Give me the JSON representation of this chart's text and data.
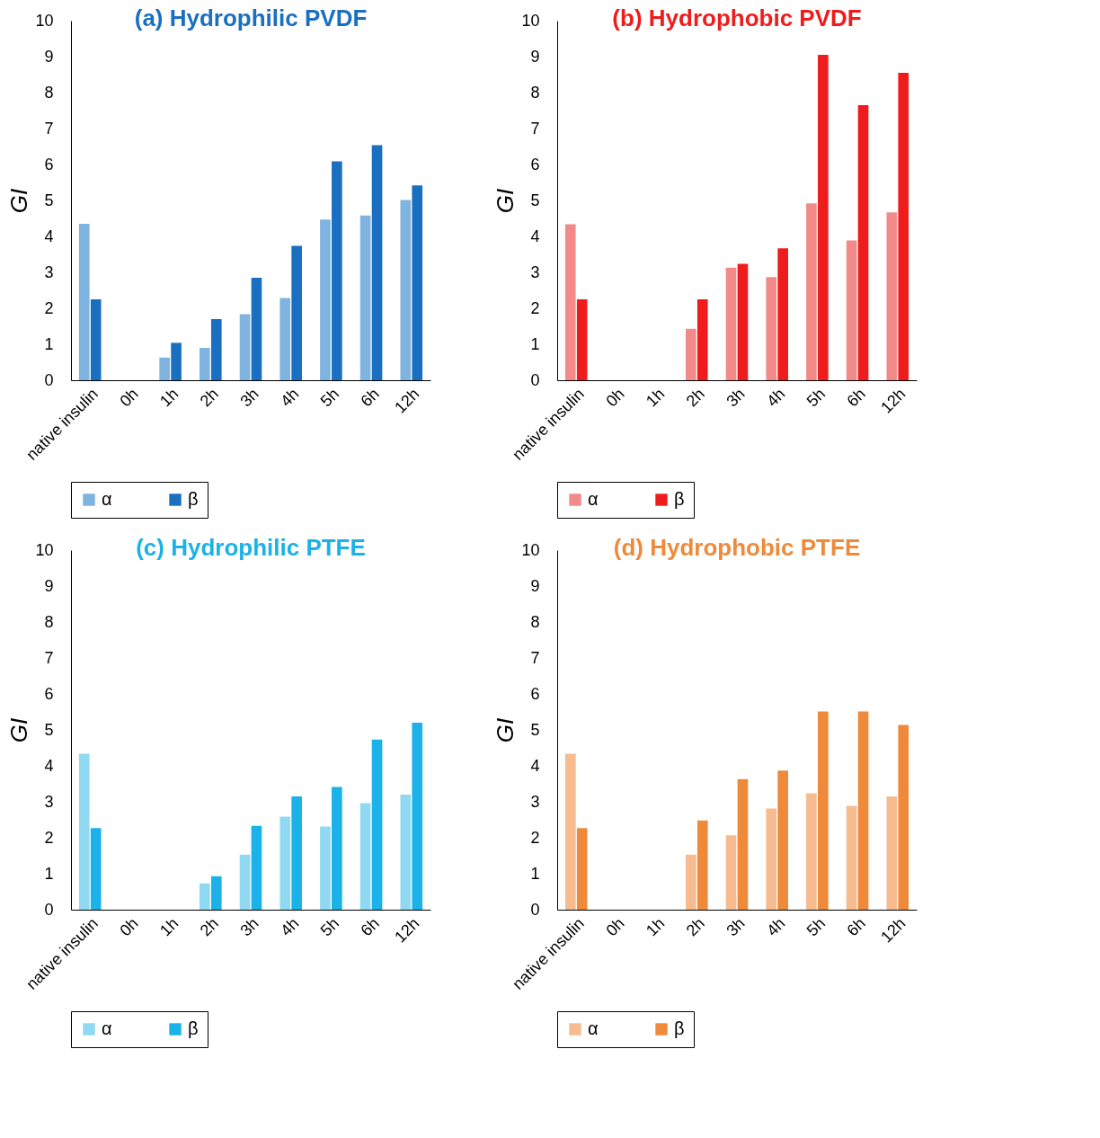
{
  "chart_data": [
    {
      "type": "bar",
      "title": "(a) Hydrophilic PVDF",
      "ylabel": "GI",
      "categories": [
        "native insulin",
        "0h",
        "1h",
        "2h",
        "3h",
        "4h",
        "5h",
        "6h",
        "12h"
      ],
      "series": [
        {
          "name": "α",
          "color": "#7fb3e0",
          "values": [
            4.35,
            0,
            0.63,
            0.9,
            1.84,
            2.29,
            4.47,
            4.58,
            5.01
          ]
        },
        {
          "name": "β",
          "color": "#1a6fc0",
          "values": [
            2.25,
            0,
            1.04,
            1.7,
            2.85,
            3.74,
            6.09,
            6.54,
            5.42
          ]
        }
      ],
      "ylim": [
        0,
        10
      ],
      "yticks": [
        0,
        1,
        2,
        3,
        4,
        5,
        6,
        7,
        8,
        9,
        10
      ],
      "grid": false,
      "legend": "bottom"
    },
    {
      "type": "bar",
      "title": "(b) Hydrophobic PVDF",
      "ylabel": "GI",
      "categories": [
        "native insulin",
        "0h",
        "1h",
        "2h",
        "3h",
        "4h",
        "5h",
        "6h",
        "12h"
      ],
      "series": [
        {
          "name": "α",
          "color": "#f28a8a",
          "values": [
            4.34,
            0,
            0,
            1.43,
            3.13,
            2.87,
            4.92,
            3.89,
            4.67
          ]
        },
        {
          "name": "β",
          "color": "#ee1c1c",
          "values": [
            2.25,
            0,
            0,
            2.25,
            3.24,
            3.67,
            9.05,
            7.65,
            8.55
          ]
        }
      ],
      "ylim": [
        0,
        10
      ],
      "yticks": [
        0,
        1,
        2,
        3,
        4,
        5,
        6,
        7,
        8,
        9,
        10
      ],
      "grid": false,
      "legend": "bottom"
    },
    {
      "type": "bar",
      "title": "(c) Hydrophilic PTFE",
      "ylabel": "GI",
      "categories": [
        "native insulin",
        "0h",
        "1h",
        "2h",
        "3h",
        "4h",
        "5h",
        "6h",
        "12h"
      ],
      "series": [
        {
          "name": "α",
          "color": "#8fd9f2",
          "values": [
            4.34,
            0,
            0,
            0.73,
            1.53,
            2.59,
            2.31,
            2.96,
            3.2
          ]
        },
        {
          "name": "β",
          "color": "#1ab2e8",
          "values": [
            2.27,
            0,
            0,
            0.93,
            2.33,
            3.15,
            3.41,
            4.73,
            5.2
          ]
        }
      ],
      "ylim": [
        0,
        10
      ],
      "yticks": [
        0,
        1,
        2,
        3,
        4,
        5,
        6,
        7,
        8,
        9,
        10
      ],
      "grid": false,
      "legend": "bottom"
    },
    {
      "type": "bar",
      "title": "(d) Hydrophobic PTFE",
      "ylabel": "GI",
      "categories": [
        "native insulin",
        "0h",
        "1h",
        "2h",
        "3h",
        "4h",
        "5h",
        "6h",
        "12h"
      ],
      "series": [
        {
          "name": "α",
          "color": "#f6bb8e",
          "values": [
            4.34,
            0,
            0,
            1.53,
            2.07,
            2.81,
            3.24,
            2.89,
            3.15
          ]
        },
        {
          "name": "β",
          "color": "#ee8a3a",
          "values": [
            2.27,
            0,
            0,
            2.48,
            3.63,
            3.87,
            5.51,
            5.51,
            5.14
          ]
        }
      ],
      "ylim": [
        0,
        10
      ],
      "yticks": [
        0,
        1,
        2,
        3,
        4,
        5,
        6,
        7,
        8,
        9,
        10
      ],
      "grid": false,
      "legend": "bottom"
    }
  ]
}
